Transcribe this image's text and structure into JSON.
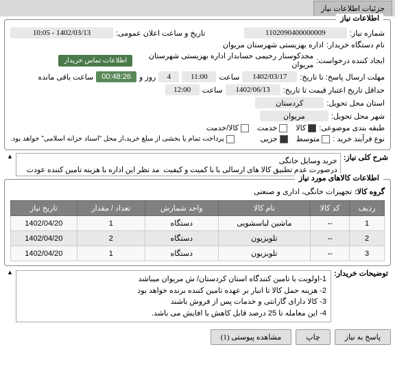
{
  "tab": {
    "title": "جزئیات اطلاعات نیاز"
  },
  "section1": {
    "title": "اطلاعات نیاز",
    "need_number_label": "شماره نیاز:",
    "need_number": "1102090400000009",
    "announce_label": "تاریخ و ساعت اعلان عمومی:",
    "announce_value": "1402/03/13 - 10:05",
    "buyer_org_label": "نام دستگاه خریدار:",
    "buyer_org": "اداره بهزیستی شهرستان مریوان",
    "requester_label": "ایجاد کننده درخواست:",
    "requester": "مجدکوسنار رحیمی حسابدار اداره بهزیستی شهرستان مریوان",
    "contact_btn": "اطلاعات تماس خریدار",
    "deadline_label": "مهلت ارسال پاسخ: تا تاریخ:",
    "deadline_date": "1402/03/17",
    "time_label": "ساعت",
    "deadline_time": "11:00",
    "days_label": "روز و",
    "days": "4",
    "countdown": "00:48:26",
    "remaining": "ساعت باقی مانده",
    "min_valid_label": "حداقل تاریخ اعتبار قیمت تا تاریخ:",
    "min_valid_date": "1402/06/13",
    "min_valid_time": "12:00",
    "province_label": "استان محل تحویل:",
    "province": "کردستان",
    "city_label": "شهر محل تحویل:",
    "city": "مریوان",
    "category_label": "طبقه بندی موضوعی:",
    "cat_goods": "کالا",
    "cat_service": "خدمت",
    "cat_goods_service": "کالا/خدمت",
    "process_label": "نوع فرآیند خرید :",
    "proc_mid": "متوسط",
    "proc_small": "جزیی",
    "payment_note": "پرداخت تمام یا بخشی از مبلغ خرید،از محل \"اسناد خزانه اسلامی\" خواهد بود."
  },
  "section2": {
    "label": "شرح کلی نیاز:",
    "text": "خرید وسایل خانگی\nدرصورت عدم تطبیق کالا های ارسالی با با کمیت و کیفیت  مد نظر این اداره با هزینه تامین کننده عودت"
  },
  "section3": {
    "title": "اطلاعات کالاهای مورد نیاز",
    "group_label": "گروه کالا:",
    "group_value": "تجهیزات خانگی، اداری و صنعتی",
    "columns": [
      "ردیف",
      "کد کالا",
      "نام کالا",
      "واحد شمارش",
      "تعداد / مقدار",
      "تاریخ نیاز"
    ],
    "rows": [
      [
        "1",
        "--",
        "ماشین لباسشویی",
        "دستگاه",
        "1",
        "1402/04/20"
      ],
      [
        "2",
        "--",
        "تلویزیون",
        "دستگاه",
        "2",
        "1402/04/20"
      ],
      [
        "3",
        "--",
        "تلویزیون",
        "دستگاه",
        "1",
        "1402/04/20"
      ]
    ]
  },
  "section4": {
    "label": "توضیحات خریدار:",
    "lines": [
      "1-اولویت با تامین کنندگاه استان کردستان/ ش مریوان میباشد",
      "2- هزینه حمل کالا تا انبار بر عهده تامین کننده برنده خواهد بود",
      "3- کالا دارای گارانتی و خدمات پس از فروش باشند",
      "4- این معامله تا 25 درصد قابل کاهش یا افایش می باشد."
    ]
  },
  "buttons": {
    "reply": "پاسخ به نیاز",
    "print": "چاپ",
    "attachments": "مشاهده پیوستی (1)"
  },
  "colors": {
    "header_bg": "#808080",
    "btn_green": "#4a7a4a",
    "countdown_bg": "#5a8a5a"
  }
}
